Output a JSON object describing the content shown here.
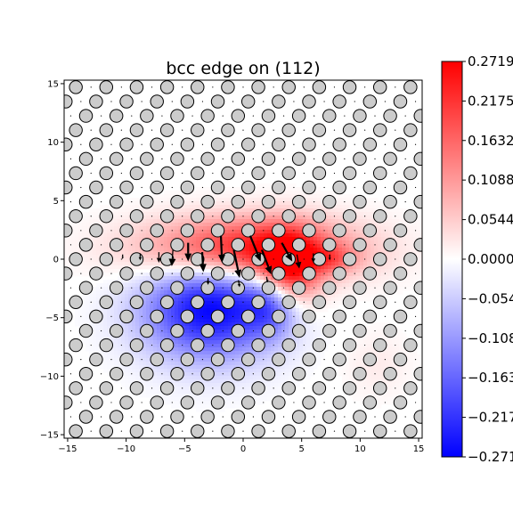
{
  "chart_data": {
    "type": "heatmap",
    "title": "bcc edge on (112)",
    "xlabel": "",
    "ylabel": "",
    "xlim": [
      -15.3,
      15.3
    ],
    "ylim": [
      -15.3,
      15.3
    ],
    "xticks": [
      -15,
      -10,
      -5,
      0,
      5,
      10,
      15
    ],
    "yticks": [
      -15,
      -10,
      -5,
      0,
      5,
      10,
      15
    ],
    "xtick_labels": [
      "−15",
      "−10",
      "−5",
      "0",
      "5",
      "10",
      "15"
    ],
    "ytick_labels": [
      "−15",
      "−10",
      "−5",
      "0",
      "5",
      "10",
      "15"
    ],
    "colorbar": {
      "colormap": "bwr",
      "vmin": -0.2719,
      "vmax": 0.2719,
      "ticks": [
        0.2719,
        0.2175,
        0.1632,
        0.1088,
        0.0544,
        0.0,
        -0.0544,
        -0.1088,
        -0.1632,
        -0.2175,
        -0.2719
      ],
      "tick_labels": [
        "0.2719",
        "0.2175",
        "0.1632",
        "0.1088",
        "0.0544",
        "0.0000",
        "−0.0544",
        "−0.1088",
        "−0.1632",
        "−0.2175",
        "−0.2719"
      ]
    },
    "lattice": {
      "a": 2.6,
      "row_spacing": 1.225,
      "atom_color": "#cccccc",
      "edge_color": "#000000"
    },
    "strain_blobs": [
      {
        "x": 0.5,
        "y": 0.8,
        "sx": 6.0,
        "sy": 1.9,
        "amp": 0.27
      },
      {
        "x": 3.8,
        "y": -1.2,
        "sx": 1.8,
        "sy": 2.3,
        "amp": 0.22
      },
      {
        "x": 7.5,
        "y": 0.0,
        "sx": 1.5,
        "sy": 0.8,
        "amp": 0.08
      },
      {
        "x": -2.8,
        "y": -4.2,
        "sx": 4.0,
        "sy": 3.0,
        "amp": -0.27
      },
      {
        "x": 2.5,
        "y": -3.8,
        "sx": 1.6,
        "sy": 1.8,
        "amp": -0.15
      },
      {
        "x": 11.5,
        "y": -9.0,
        "sx": 2.0,
        "sy": 2.0,
        "amp": 0.02
      }
    ],
    "displacement_arrows": [
      {
        "x": -1.9,
        "y": 2.0,
        "dx": 0.1,
        "dy": -2.3
      },
      {
        "x": -0.8,
        "y": 0.8,
        "dx": 0.5,
        "dy": -2.4
      },
      {
        "x": 0.6,
        "y": 2.0,
        "dx": 0.9,
        "dy": -2.2
      },
      {
        "x": 1.6,
        "y": 0.8,
        "dx": 0.8,
        "dy": -2.1
      },
      {
        "x": -4.7,
        "y": 1.4,
        "dx": 0.0,
        "dy": -1.6
      },
      {
        "x": -3.5,
        "y": 0.6,
        "dx": 0.1,
        "dy": -1.7
      },
      {
        "x": -6.0,
        "y": 0.8,
        "dx": -0.1,
        "dy": -1.4
      },
      {
        "x": 3.3,
        "y": 1.4,
        "dx": 0.9,
        "dy": -1.6
      },
      {
        "x": 4.6,
        "y": 0.4,
        "dx": 0.2,
        "dy": -1.2
      },
      {
        "x": -7.2,
        "y": 0.6,
        "dx": 0.0,
        "dy": -0.9
      },
      {
        "x": 6.0,
        "y": 0.5,
        "dx": 0.0,
        "dy": -0.8
      },
      {
        "x": -8.8,
        "y": 0.5,
        "dx": 0.0,
        "dy": -0.6
      },
      {
        "x": 7.4,
        "y": 0.4,
        "dx": 0.0,
        "dy": -0.5
      },
      {
        "x": -10.3,
        "y": 0.4,
        "dx": 0.0,
        "dy": -0.4
      },
      {
        "x": -3.0,
        "y": -1.6,
        "dx": 0.0,
        "dy": -0.6
      },
      {
        "x": -0.4,
        "y": -1.8,
        "dx": 0.1,
        "dy": -0.6
      },
      {
        "x": 2.0,
        "y": -1.5,
        "dx": 0.1,
        "dy": -0.5
      }
    ]
  }
}
